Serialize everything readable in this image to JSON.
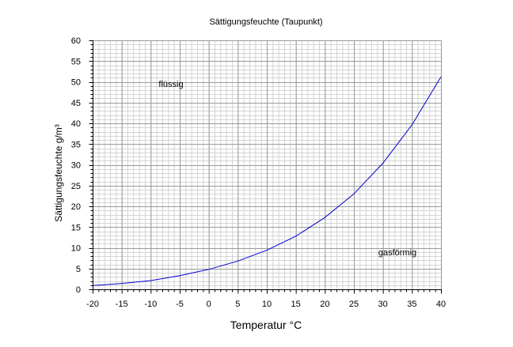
{
  "chart_data": {
    "type": "line",
    "title": "Sättigungsfeuchte (Taupunkt)",
    "xlabel": "Temperatur  °C",
    "ylabel": "Sättigungsfeuchte g/m³",
    "xlim": [
      -20,
      40
    ],
    "ylim": [
      0,
      60
    ],
    "x_ticks": [
      -20,
      -15,
      -10,
      -5,
      0,
      5,
      10,
      15,
      20,
      25,
      30,
      35,
      40
    ],
    "y_ticks": [
      0,
      5,
      10,
      15,
      20,
      25,
      30,
      35,
      40,
      45,
      50,
      55,
      60
    ],
    "grid": true,
    "legend": "none",
    "series": [
      {
        "color": "#0000cc",
        "x": [
          -20,
          -15,
          -10,
          -5,
          0,
          5,
          10,
          15,
          20,
          25,
          30,
          35,
          40
        ],
        "y": [
          0.9,
          1.4,
          2.1,
          3.3,
          4.8,
          6.8,
          9.4,
          12.8,
          17.3,
          23.0,
          30.4,
          39.6,
          51.2
        ]
      }
    ],
    "annotations": [
      {
        "text": "flüssig",
        "x": -6.5,
        "y": 49.5
      },
      {
        "text": "gasförmig",
        "x": 32.5,
        "y": 9
      }
    ]
  }
}
